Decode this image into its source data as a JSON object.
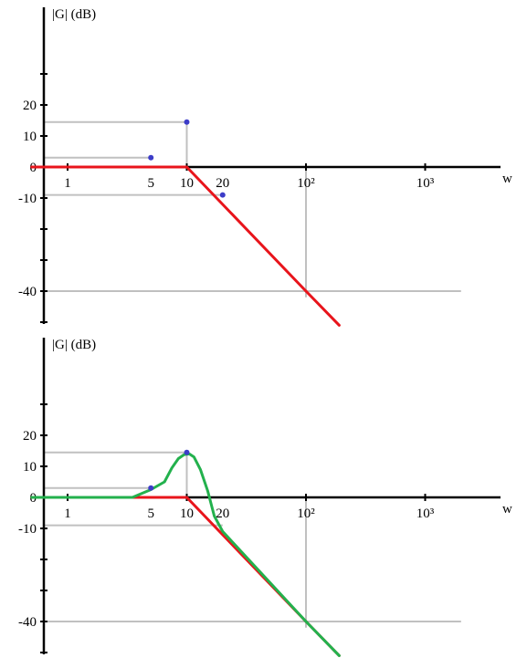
{
  "chart_data": [
    {
      "type": "line",
      "ylabel": "|G| (dB)",
      "xlabel": "w",
      "x_scale": "log",
      "x_tick_labels": [
        "1",
        "5",
        "10",
        "20",
        "10²",
        "10³"
      ],
      "x_tick_values": [
        1,
        5,
        10,
        20,
        100,
        1000
      ],
      "y_tick_labels": [
        "20",
        "10",
        "0",
        "-10",
        "-40"
      ],
      "y_tick_values": [
        20,
        10,
        0,
        -10,
        -40
      ],
      "series": [
        {
          "color": "#e8141b",
          "x": [
            0.5,
            10,
            100,
            190
          ],
          "y": [
            0,
            0,
            -40,
            -51
          ]
        }
      ],
      "markers": [
        {
          "x": 5,
          "y": 3,
          "color": "#3c3cc8"
        },
        {
          "x": 10,
          "y": 14.5,
          "color": "#3c3cc8"
        },
        {
          "x": 20,
          "y": -9,
          "color": "#3c3cc8"
        }
      ],
      "guides": [
        {
          "type": "h",
          "y": 14.5,
          "x_from": 0.5,
          "x_to": 10
        },
        {
          "type": "h",
          "y": 3,
          "x_from": 0.5,
          "x_to": 5
        },
        {
          "type": "h",
          "y": -9,
          "x_from": 0.5,
          "x_to": 20
        },
        {
          "type": "h",
          "y": -40,
          "x_from": 0.5,
          "x_to": 2000
        },
        {
          "type": "v",
          "x": 10,
          "y_from": 0,
          "y_to": 14.5
        },
        {
          "type": "v",
          "x": 100,
          "y_from": 0,
          "y_to": -42
        }
      ]
    },
    {
      "type": "line",
      "ylabel": "|G| (dB)",
      "xlabel": "w",
      "x_scale": "log",
      "x_tick_labels": [
        "1",
        "5",
        "10",
        "20",
        "10²",
        "10³"
      ],
      "x_tick_values": [
        1,
        5,
        10,
        20,
        100,
        1000
      ],
      "y_tick_labels": [
        "20",
        "10",
        "0",
        "-10",
        "-40"
      ],
      "y_tick_values": [
        20,
        10,
        0,
        -10,
        -40
      ],
      "series": [
        {
          "color": "#e8141b",
          "x": [
            0.5,
            10,
            100,
            190
          ],
          "y": [
            0,
            0,
            -40,
            -51
          ]
        },
        {
          "color": "#23b14d",
          "x": [
            0.5,
            3.5,
            5,
            6.5,
            7.5,
            8.5,
            9.5,
            10.5,
            11.5,
            13,
            15,
            17,
            20,
            25,
            100,
            190
          ],
          "y": [
            0,
            0,
            2.5,
            5,
            9.5,
            12.5,
            13.8,
            14,
            13,
            9,
            2,
            -6,
            -11,
            -15,
            -40,
            -51
          ]
        }
      ],
      "markers": [
        {
          "x": 5,
          "y": 3,
          "color": "#3c3cc8"
        },
        {
          "x": 10,
          "y": 14.5,
          "color": "#3c3cc8"
        }
      ],
      "guides": [
        {
          "type": "h",
          "y": 14.5,
          "x_from": 0.5,
          "x_to": 10
        },
        {
          "type": "h",
          "y": 3,
          "x_from": 0.5,
          "x_to": 5
        },
        {
          "type": "h",
          "y": -9,
          "x_from": 0.5,
          "x_to": 20
        },
        {
          "type": "h",
          "y": -40,
          "x_from": 0.5,
          "x_to": 2000
        },
        {
          "type": "v",
          "x": 10,
          "y_from": 0,
          "y_to": 14.5
        },
        {
          "type": "v",
          "x": 100,
          "y_from": 0,
          "y_to": -42
        }
      ]
    }
  ],
  "colors": {
    "axis": "#000000",
    "guide": "#c0c0c0",
    "asymptote": "#e8141b",
    "curve": "#23b14d",
    "marker": "#3c3cc8"
  }
}
